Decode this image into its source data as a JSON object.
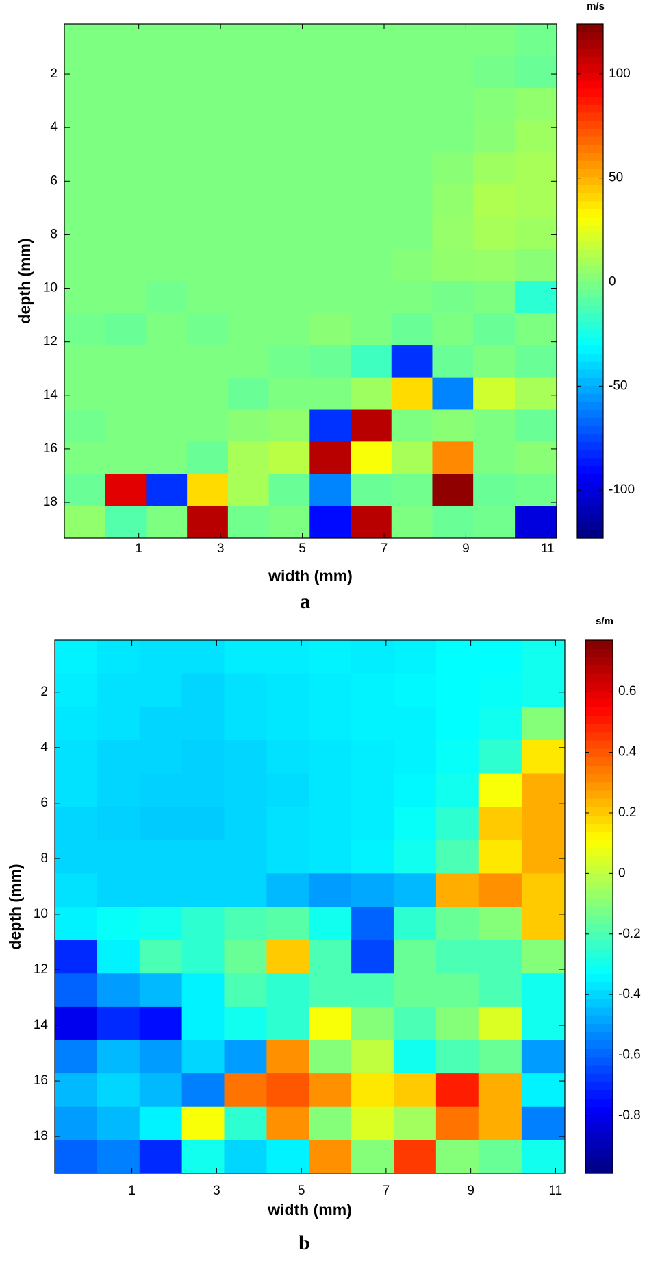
{
  "chart_data": [
    {
      "type": "heatmap",
      "caption": "a",
      "xlabel": "width (mm)",
      "ylabel": "depth (mm)",
      "colorbar_label": "m/s",
      "colormap": "jet",
      "x": [
        -0.32,
        0.68,
        1.68,
        2.68,
        3.68,
        4.68,
        5.68,
        6.68,
        7.68,
        8.68,
        9.68,
        10.72
      ],
      "y": [
        0.73,
        1.93,
        3.13,
        4.33,
        5.53,
        6.73,
        7.93,
        9.13,
        10.33,
        11.53,
        12.73,
        13.93,
        15.13,
        16.33,
        17.53,
        18.73
      ],
      "z": [
        [
          0,
          0,
          0,
          0,
          0,
          0,
          0,
          0,
          0,
          0,
          0,
          -3
        ],
        [
          0,
          0,
          0,
          0,
          0,
          0,
          0,
          0,
          0,
          0,
          -2,
          -5
        ],
        [
          0,
          0,
          0,
          0,
          0,
          0,
          0,
          0,
          0,
          0,
          2,
          5
        ],
        [
          0,
          0,
          0,
          0,
          0,
          0,
          0,
          0,
          0,
          0,
          3,
          8
        ],
        [
          0,
          0,
          0,
          0,
          0,
          0,
          0,
          0,
          0,
          3,
          8,
          10
        ],
        [
          0,
          0,
          0,
          0,
          0,
          0,
          0,
          0,
          0,
          5,
          12,
          10
        ],
        [
          0,
          0,
          0,
          0,
          0,
          0,
          0,
          0,
          0,
          6,
          10,
          8
        ],
        [
          0,
          0,
          0,
          0,
          0,
          0,
          0,
          0,
          2,
          5,
          6,
          3
        ],
        [
          0,
          0,
          -3,
          0,
          0,
          0,
          0,
          0,
          0,
          -2,
          0,
          -20
        ],
        [
          -3,
          -5,
          0,
          -3,
          0,
          0,
          3,
          0,
          -5,
          0,
          -5,
          0
        ],
        [
          0,
          0,
          0,
          0,
          0,
          -3,
          -5,
          -15,
          -80,
          -5,
          0,
          -5
        ],
        [
          0,
          0,
          0,
          0,
          -5,
          0,
          0,
          8,
          40,
          -60,
          20,
          10
        ],
        [
          -3,
          0,
          0,
          0,
          3,
          5,
          -80,
          110,
          0,
          3,
          0,
          -5
        ],
        [
          0,
          0,
          0,
          -5,
          10,
          15,
          110,
          30,
          10,
          60,
          0,
          3
        ],
        [
          -5,
          100,
          -80,
          40,
          10,
          -5,
          -60,
          -5,
          -3,
          120,
          -5,
          -3
        ],
        [
          5,
          -10,
          0,
          110,
          -3,
          0,
          -90,
          110,
          0,
          -5,
          -3,
          -100
        ]
      ],
      "xlim": [
        -0.82,
        11.22
      ],
      "ylim": [
        0.13,
        19.33
      ],
      "yaxis_inverted": true,
      "xticks": [
        1,
        3,
        5,
        7,
        9,
        11
      ],
      "yticks": [
        2,
        4,
        6,
        8,
        10,
        12,
        14,
        16,
        18
      ],
      "clim": [
        -123,
        124
      ],
      "cticks": [
        -100,
        -50,
        0,
        50,
        100
      ]
    },
    {
      "type": "heatmap",
      "caption": "b",
      "xlabel": "width (mm)",
      "ylabel": "depth (mm)",
      "colorbar_label": "s/m",
      "colormap": "jet",
      "x": [
        -0.32,
        0.68,
        1.68,
        2.68,
        3.68,
        4.68,
        5.68,
        6.68,
        7.68,
        8.68,
        9.68,
        10.72
      ],
      "y": [
        0.73,
        1.93,
        3.13,
        4.33,
        5.53,
        6.73,
        7.93,
        9.13,
        10.33,
        11.53,
        12.73,
        13.93,
        15.13,
        16.33,
        17.53,
        18.73
      ],
      "z": [
        [
          -0.35,
          -0.37,
          -0.38,
          -0.38,
          -0.36,
          -0.36,
          -0.35,
          -0.36,
          -0.35,
          -0.33,
          -0.33,
          -0.3
        ],
        [
          -0.36,
          -0.38,
          -0.38,
          -0.4,
          -0.38,
          -0.37,
          -0.36,
          -0.35,
          -0.34,
          -0.33,
          -0.32,
          -0.3
        ],
        [
          -0.37,
          -0.38,
          -0.4,
          -0.4,
          -0.38,
          -0.37,
          -0.36,
          -0.35,
          -0.35,
          -0.33,
          -0.3,
          -0.1
        ],
        [
          -0.38,
          -0.4,
          -0.4,
          -0.41,
          -0.4,
          -0.38,
          -0.37,
          -0.36,
          -0.35,
          -0.32,
          -0.25,
          0.15
        ],
        [
          -0.38,
          -0.4,
          -0.41,
          -0.41,
          -0.4,
          -0.39,
          -0.37,
          -0.36,
          -0.34,
          -0.3,
          0.1,
          0.25
        ],
        [
          -0.4,
          -0.41,
          -0.42,
          -0.42,
          -0.4,
          -0.38,
          -0.37,
          -0.36,
          -0.32,
          -0.25,
          0.2,
          0.25
        ],
        [
          -0.4,
          -0.4,
          -0.4,
          -0.4,
          -0.4,
          -0.38,
          -0.37,
          -0.35,
          -0.3,
          -0.2,
          0.15,
          0.25
        ],
        [
          -0.38,
          -0.4,
          -0.4,
          -0.4,
          -0.4,
          -0.45,
          -0.5,
          -0.48,
          -0.45,
          0.25,
          0.3,
          0.2
        ],
        [
          -0.35,
          -0.32,
          -0.3,
          -0.25,
          -0.2,
          -0.18,
          -0.3,
          -0.6,
          -0.25,
          -0.15,
          -0.1,
          0.2
        ],
        [
          -0.7,
          -0.35,
          -0.2,
          -0.25,
          -0.15,
          0.2,
          -0.2,
          -0.65,
          -0.15,
          -0.2,
          -0.2,
          -0.1
        ],
        [
          -0.6,
          -0.5,
          -0.45,
          -0.35,
          -0.2,
          -0.25,
          -0.2,
          -0.2,
          -0.15,
          -0.15,
          -0.2,
          -0.3
        ],
        [
          -0.8,
          -0.7,
          -0.75,
          -0.35,
          -0.3,
          -0.25,
          0.1,
          -0.1,
          -0.2,
          -0.1,
          0.05,
          -0.3
        ],
        [
          -0.55,
          -0.45,
          -0.5,
          -0.4,
          -0.5,
          0.3,
          -0.1,
          0,
          -0.3,
          -0.2,
          -0.15,
          -0.5
        ],
        [
          -0.45,
          -0.4,
          -0.45,
          -0.55,
          0.35,
          0.4,
          0.3,
          0.15,
          0.2,
          0.5,
          0.25,
          -0.35
        ],
        [
          -0.5,
          -0.45,
          -0.35,
          0.1,
          -0.25,
          0.3,
          -0.1,
          0.05,
          -0.05,
          0.35,
          0.25,
          -0.55
        ],
        [
          -0.6,
          -0.55,
          -0.7,
          -0.3,
          -0.4,
          -0.35,
          0.3,
          -0.1,
          0.45,
          -0.1,
          -0.15,
          -0.3
        ]
      ],
      "xlim": [
        -0.82,
        11.22
      ],
      "ylim": [
        0.13,
        19.33
      ],
      "yaxis_inverted": true,
      "xticks": [
        1,
        3,
        5,
        7,
        9,
        11
      ],
      "yticks": [
        2,
        4,
        6,
        8,
        10,
        12,
        14,
        16,
        18
      ],
      "clim": [
        -0.99,
        0.77
      ],
      "cticks": [
        -0.8,
        -0.6,
        -0.4,
        -0.2,
        0,
        0.2,
        0.4,
        0.6
      ]
    }
  ]
}
